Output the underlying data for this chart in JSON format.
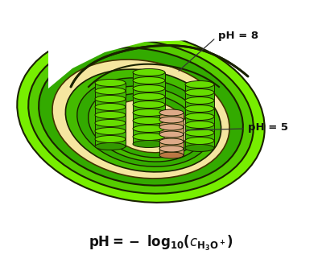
{
  "bg_color": "#ffffff",
  "label_ph8": "pH = 8",
  "label_ph5": "pH = 5",
  "colors": {
    "lime_bright": "#66ee00",
    "lime_mid": "#44cc00",
    "green_dark": "#228800",
    "green_mid": "#33aa00",
    "green_inner": "#55cc00",
    "stroma_yellow": "#f5e6a0",
    "thylakoid_top": "#66dd00",
    "thylakoid_side": "#44bb00",
    "thylakoid_dark": "#33aa00",
    "lumen_light": "#ddaa88",
    "lumen_mid": "#cc9966",
    "lumen_dark": "#bb7744",
    "outline_dark": "#1a1a00",
    "outline_mid": "#333300"
  }
}
